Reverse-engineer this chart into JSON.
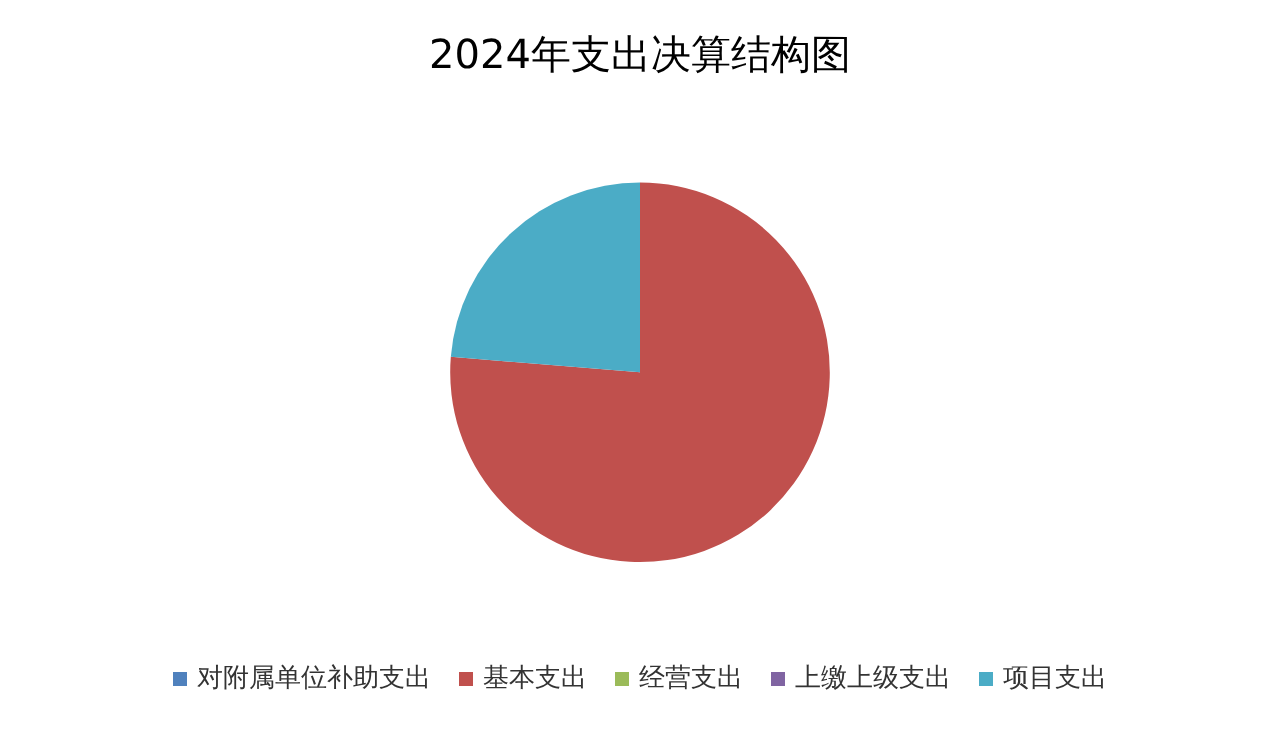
{
  "chart_data": {
    "type": "pie",
    "title": "2024年支出决算结构图",
    "categories": [
      "对附属单位补助支出",
      "基本支出",
      "经营支出",
      "上缴上级支出",
      "项目支出"
    ],
    "values": [
      0,
      76.3,
      0,
      0,
      23.7
    ],
    "colors": [
      "#4f81bd",
      "#c0504d",
      "#9bbb59",
      "#8064a2",
      "#4bacc6"
    ],
    "legend": "bottom"
  }
}
